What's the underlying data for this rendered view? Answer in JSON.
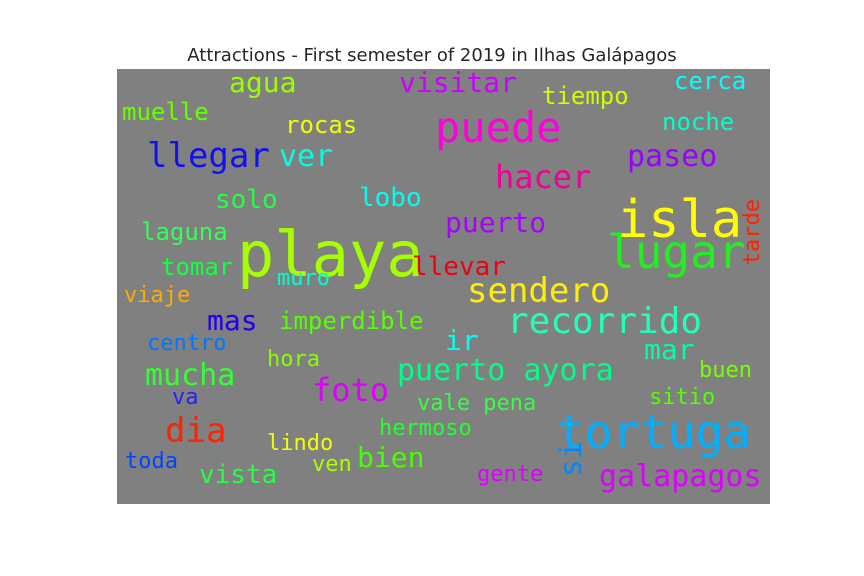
{
  "chart_data": {
    "type": "wordcloud",
    "title": "Attractions - First semester of 2019 in Ilhas Galápagos",
    "words": [
      {
        "text": "playa",
        "color": "#a6ff00",
        "vertical": false
      },
      {
        "text": "isla",
        "color": "#ffff00",
        "vertical": false
      },
      {
        "text": "tortuga",
        "color": "#00b0ff",
        "vertical": false
      },
      {
        "text": "puede",
        "color": "#ff00dd",
        "vertical": false
      },
      {
        "text": "lugar",
        "color": "#22ee22",
        "vertical": false
      },
      {
        "text": "recorrido",
        "color": "#22ffbb",
        "vertical": false
      },
      {
        "text": "llegar",
        "color": "#1111ee",
        "vertical": false
      },
      {
        "text": "sendero",
        "color": "#ffee00",
        "vertical": false
      },
      {
        "text": "dia",
        "color": "#ff2200",
        "vertical": false
      },
      {
        "text": "hacer",
        "color": "#ee0099",
        "vertical": false
      },
      {
        "text": "foto",
        "color": "#dd00ff",
        "vertical": false
      },
      {
        "text": "ver",
        "color": "#00ffdd",
        "vertical": false
      },
      {
        "text": "puerto ayora",
        "color": "#00ff88",
        "vertical": false
      },
      {
        "text": "paseo",
        "color": "#9900ff",
        "vertical": false
      },
      {
        "text": "galapagos",
        "color": "#dd00ff",
        "vertical": false
      },
      {
        "text": "mucha",
        "color": "#33ff33",
        "vertical": false
      },
      {
        "text": "visitar",
        "color": "#cc00ff",
        "vertical": false
      },
      {
        "text": "agua",
        "color": "#99ff00",
        "vertical": false
      },
      {
        "text": "puerto",
        "color": "#aa00ff",
        "vertical": false
      },
      {
        "text": "mas",
        "color": "#2200ee",
        "vertical": false
      },
      {
        "text": "si",
        "color": "#0088ff",
        "vertical": true
      },
      {
        "text": "mar",
        "color": "#00ffaa",
        "vertical": false
      },
      {
        "text": "vista",
        "color": "#22ff44",
        "vertical": false
      },
      {
        "text": "bien",
        "color": "#44ff00",
        "vertical": false
      },
      {
        "text": "llevar",
        "color": "#ee0011",
        "vertical": false
      },
      {
        "text": "ir",
        "color": "#00ffee",
        "vertical": false
      },
      {
        "text": "imperdible",
        "color": "#55ff00",
        "vertical": false
      },
      {
        "text": "solo",
        "color": "#22ff44",
        "vertical": false
      },
      {
        "text": "lobo",
        "color": "#00ffee",
        "vertical": false
      },
      {
        "text": "rocas",
        "color": "#eeff00",
        "vertical": false
      },
      {
        "text": "tiempo",
        "color": "#ccff00",
        "vertical": false
      },
      {
        "text": "noche",
        "color": "#00ffcc",
        "vertical": false
      },
      {
        "text": "cerca",
        "color": "#00ffff",
        "vertical": false
      },
      {
        "text": "muelle",
        "color": "#66ff00",
        "vertical": false
      },
      {
        "text": "laguna",
        "color": "#33ff55",
        "vertical": false
      },
      {
        "text": "tomar",
        "color": "#11ff44",
        "vertical": false
      },
      {
        "text": "viaje",
        "color": "#ffaa00",
        "vertical": false
      },
      {
        "text": "muro",
        "color": "#00ffcc",
        "vertical": false
      },
      {
        "text": "centro",
        "color": "#0077ff",
        "vertical": false
      },
      {
        "text": "hora",
        "color": "#88ff00",
        "vertical": false
      },
      {
        "text": "va",
        "color": "#2222ff",
        "vertical": false
      },
      {
        "text": "toda",
        "color": "#0044ff",
        "vertical": false
      },
      {
        "text": "lindo",
        "color": "#eeff00",
        "vertical": false
      },
      {
        "text": "ven",
        "color": "#aaff00",
        "vertical": false
      },
      {
        "text": "hermoso",
        "color": "#22ff33",
        "vertical": false
      },
      {
        "text": "vale pena",
        "color": "#33ff44",
        "vertical": false
      },
      {
        "text": "gente",
        "color": "#dd00ff",
        "vertical": false
      },
      {
        "text": "sitio",
        "color": "#55ff00",
        "vertical": false
      },
      {
        "text": "buen",
        "color": "#77ff00",
        "vertical": false
      },
      {
        "text": "tarde",
        "color": "#ff2200",
        "vertical": true
      }
    ]
  }
}
